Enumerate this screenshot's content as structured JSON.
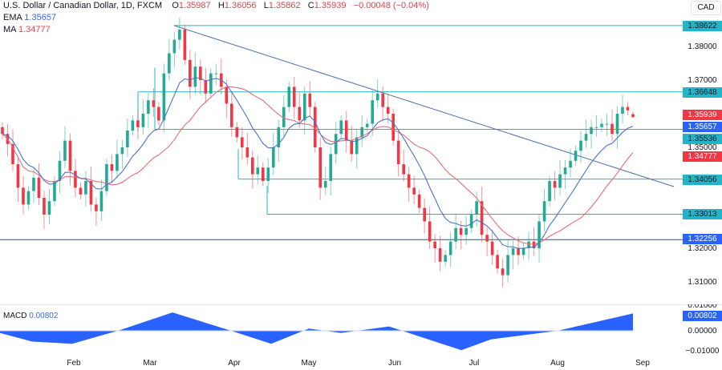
{
  "header": {
    "symbol_title": "U.S. Dollar / Canadian Dollar, 1D, FXCM",
    "ohlc": [
      {
        "label": "O",
        "value": "1.35987"
      },
      {
        "label": "H",
        "value": "1.36056"
      },
      {
        "label": "L",
        "value": "1.35862"
      },
      {
        "label": "C",
        "value": "1.35939"
      }
    ],
    "change": "−0.00048 (−0.04%)",
    "ema_label": "EMA",
    "ema_value": "1.35657",
    "ma_label": "MA",
    "ma_value": "1.34777"
  },
  "currency_button": "CAD",
  "price_axis": {
    "labels": [
      "1.38000",
      "1.37000",
      "1.35000",
      "1.32000",
      "1.31000"
    ]
  },
  "price_tags": [
    {
      "value": "1.38622",
      "bg": "#22b5c9",
      "fg": "#131722"
    },
    {
      "value": "1.36648",
      "bg": "#22b5c9",
      "fg": "#131722"
    },
    {
      "value": "1.35939",
      "bg": "#f23645",
      "fg": "#ffffff"
    },
    {
      "value": "1.35657",
      "bg": "#2962ff",
      "fg": "#ffffff"
    },
    {
      "value": "1.35536",
      "bg": "#22b5c9",
      "fg": "#131722"
    },
    {
      "value": "1.34777",
      "bg": "#f23645",
      "fg": "#ffffff"
    },
    {
      "value": "1.34056",
      "bg": "#22b5c9",
      "fg": "#131722"
    },
    {
      "value": "1.33013",
      "bg": "#22b5c9",
      "fg": "#131722"
    },
    {
      "value": "1.32256",
      "bg": "#2962ff",
      "fg": "#ffffff"
    }
  ],
  "macd": {
    "label": "MACD",
    "value": "0.00802",
    "axis_labels": [
      "0.01000",
      "0.00000",
      "−0.01000"
    ]
  },
  "time_axis": {
    "labels": [
      "Feb",
      "Mar",
      "Apr",
      "May",
      "Jun",
      "Jul",
      "Aug",
      "Sep"
    ]
  },
  "colors": {
    "up": "#22ab94",
    "down": "#f23645",
    "ema": "#4a73c9",
    "ma": "#e0707a",
    "level": "#22b5c9",
    "trendline": "#4f6fb0",
    "macd_fill": "#2962ff"
  },
  "chart_data": [
    {
      "type": "candlestick",
      "title": "U.S. Dollar / Canadian Dollar, 1D, FXCM",
      "xlabel": "",
      "ylabel": "CAD",
      "ylim": [
        1.305,
        1.3915
      ],
      "x_ticks": [
        "Feb",
        "Mar",
        "Apr",
        "May",
        "Jun",
        "Jul",
        "Aug",
        "Sep"
      ],
      "y_ticks": [
        1.38,
        1.37,
        1.35,
        1.32,
        1.31
      ],
      "last_bar": {
        "open": 1.35987,
        "high": 1.36056,
        "low": 1.35862,
        "close": 1.35939,
        "change": -0.00048,
        "change_pct": -0.04
      },
      "indicators": {
        "EMA": 1.35657,
        "MA": 1.34777
      },
      "horizontal_levels": [
        1.38622,
        1.36648,
        1.35536,
        1.34056,
        1.33013,
        1.32256
      ],
      "trendline": {
        "from": {
          "x": "early Mar",
          "y": 1.38622
        },
        "to": {
          "x": "end Aug",
          "y": 1.339
        }
      },
      "approx_closes_by_month": {
        "Jan": [
          1.354,
          1.351,
          1.345,
          1.338,
          1.333,
          1.337,
          1.341,
          1.335,
          1.33,
          1.334,
          1.34
        ],
        "Feb": [
          1.346,
          1.352,
          1.343,
          1.338,
          1.336,
          1.34,
          1.333,
          1.331,
          1.337,
          1.345,
          1.343,
          1.348,
          1.35,
          1.355,
          1.358,
          1.356,
          1.36,
          1.364,
          1.362,
          1.358
        ],
        "Mar": [
          1.372,
          1.378,
          1.382,
          1.385,
          1.376,
          1.368,
          1.374,
          1.37,
          1.366,
          1.372,
          1.372,
          1.368,
          1.363,
          1.356,
          1.353
        ],
        "Apr": [
          1.35,
          1.347,
          1.342,
          1.344,
          1.34,
          1.344,
          1.35,
          1.356,
          1.362,
          1.368,
          1.362,
          1.358,
          1.366
        ],
        "May": [
          1.362,
          1.35,
          1.338,
          1.34,
          1.348,
          1.354,
          1.358,
          1.352,
          1.348,
          1.353,
          1.356,
          1.357,
          1.364,
          1.366,
          1.362,
          1.36
        ],
        "Jun": [
          1.352,
          1.345,
          1.342,
          1.338,
          1.336,
          1.332,
          1.328,
          1.322,
          1.32,
          1.316,
          1.318,
          1.322,
          1.326,
          1.324
        ],
        "Jul": [
          1.326,
          1.33,
          1.334,
          1.324,
          1.322,
          1.318,
          1.314,
          1.312,
          1.318,
          1.32,
          1.318,
          1.32,
          1.322,
          1.32,
          1.328
        ],
        "Aug": [
          1.334,
          1.34,
          1.338,
          1.342,
          1.344,
          1.346,
          1.349,
          1.352,
          1.354,
          1.356,
          1.356,
          1.357,
          1.357,
          1.354,
          1.36,
          1.362,
          1.361,
          1.359
        ]
      }
    },
    {
      "type": "area",
      "title": "MACD",
      "ylim": [
        -0.012,
        0.012
      ],
      "y_ticks": [
        0.01,
        0.0,
        -0.01
      ],
      "last_value": 0.00802,
      "approx_series": {
        "x": [
          "Jan",
          "early Feb",
          "mid Feb",
          "Mar 1",
          "mid Mar",
          "Apr 1",
          "mid Apr",
          "May 1",
          "mid May",
          "Jun 1",
          "late Jun",
          "mid Jul",
          "Aug 1",
          "late Aug"
        ],
        "values": [
          -0.001,
          -0.005,
          -0.006,
          0.0,
          0.0085,
          0.0,
          -0.006,
          0.001,
          -0.001,
          0.002,
          -0.009,
          -0.004,
          0.0,
          0.008
        ]
      }
    }
  ]
}
